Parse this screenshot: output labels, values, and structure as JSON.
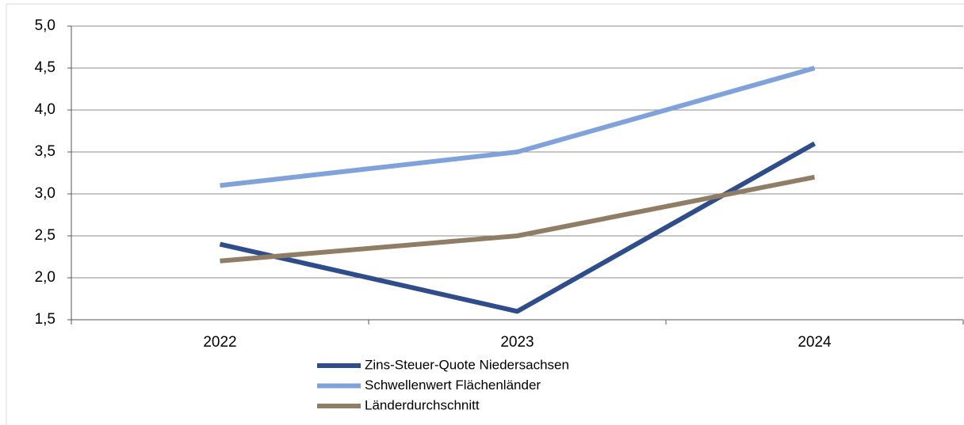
{
  "chart_data": {
    "type": "line",
    "categories": [
      "2022",
      "2023",
      "2024"
    ],
    "series": [
      {
        "name": "Zins-Steuer-Quote Niedersachsen",
        "color": "#2e4d8a",
        "values": [
          2.4,
          1.6,
          3.6
        ]
      },
      {
        "name": "Schwellenwert Flächenländer",
        "color": "#7fa2db",
        "values": [
          3.1,
          3.5,
          4.5
        ]
      },
      {
        "name": "Länderdurchschnitt",
        "color": "#8f7d65",
        "values": [
          2.2,
          2.5,
          3.2
        ]
      }
    ],
    "ylim": [
      1.5,
      5.0
    ],
    "yticks": [
      {
        "value": 1.5,
        "label": "1,5"
      },
      {
        "value": 2.0,
        "label": "2,0"
      },
      {
        "value": 2.5,
        "label": "2,5"
      },
      {
        "value": 3.0,
        "label": "3,0"
      },
      {
        "value": 3.5,
        "label": "3,5"
      },
      {
        "value": 4.0,
        "label": "4,0"
      },
      {
        "value": 4.5,
        "label": "4,5"
      },
      {
        "value": 5.0,
        "label": "5,0"
      }
    ],
    "grid": true
  }
}
